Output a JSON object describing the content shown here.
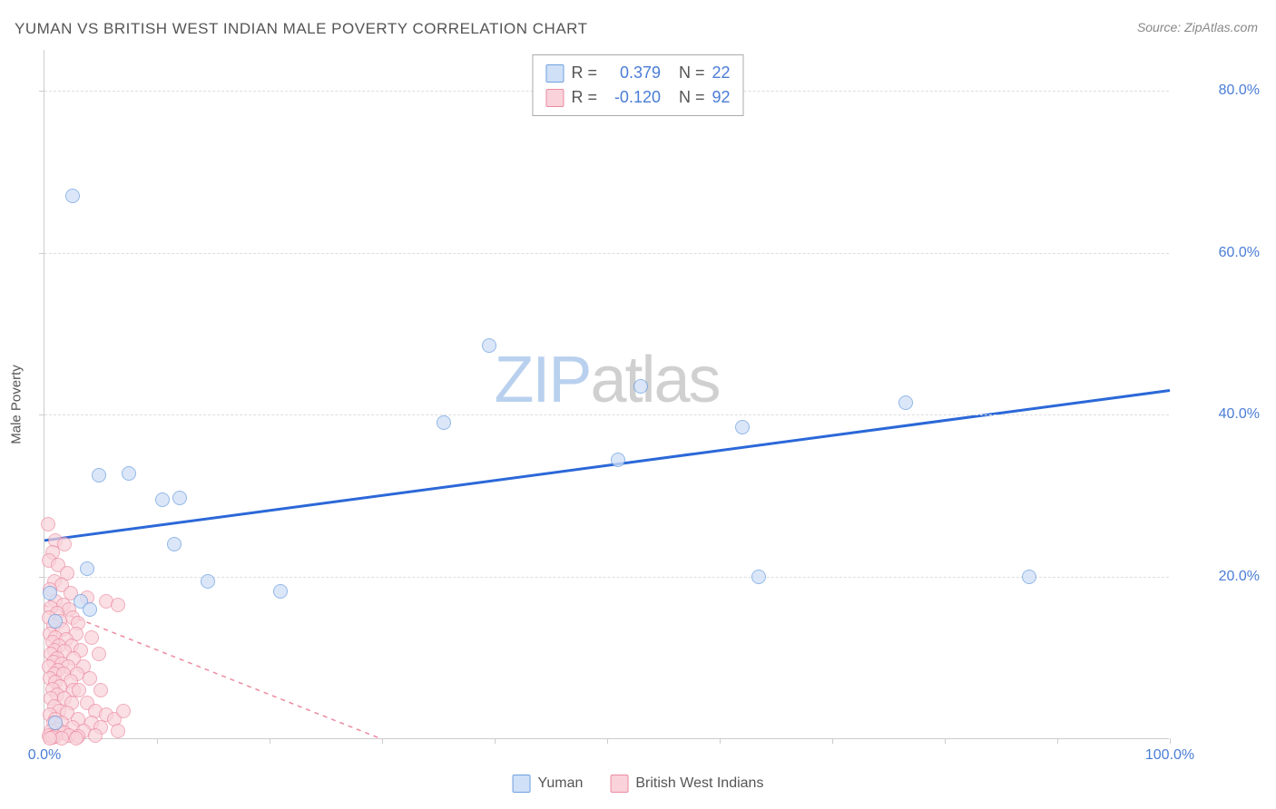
{
  "title": "YUMAN VS BRITISH WEST INDIAN MALE POVERTY CORRELATION CHART",
  "source": "Source: ZipAtlas.com",
  "y_axis_label": "Male Poverty",
  "watermark_a": "ZIP",
  "watermark_b": "atlas",
  "chart": {
    "type": "scatter",
    "xlim": [
      0,
      100
    ],
    "ylim": [
      0,
      85
    ],
    "y_ticks": [
      20,
      40,
      60,
      80
    ],
    "y_tick_labels": [
      "20.0%",
      "40.0%",
      "60.0%",
      "80.0%"
    ],
    "x_ticks": [
      0,
      10,
      20,
      30,
      40,
      50,
      60,
      70,
      80,
      90,
      100
    ],
    "x_end_labels": {
      "start": "0.0%",
      "end": "100.0%"
    },
    "background_color": "#ffffff",
    "grid_color": "#dddddd",
    "axis_color": "#cccccc",
    "tick_label_color": "#4a7dd6",
    "marker_radius": 8,
    "marker_border_width": 1.2,
    "series": [
      {
        "name": "Yuman",
        "fill": "#cfe0f7",
        "stroke": "#6ea0e0",
        "fill_opacity": 0.75,
        "points": [
          [
            2.5,
            67
          ],
          [
            4.8,
            32.5
          ],
          [
            7.5,
            32.8
          ],
          [
            10.5,
            29.5
          ],
          [
            12.0,
            29.8
          ],
          [
            11.5,
            24.0
          ],
          [
            3.8,
            21.0
          ],
          [
            14.5,
            19.5
          ],
          [
            21.0,
            18.2
          ],
          [
            0.5,
            18.0
          ],
          [
            3.2,
            17.0
          ],
          [
            4.0,
            16.0
          ],
          [
            1.0,
            14.5
          ],
          [
            39.5,
            48.5
          ],
          [
            35.5,
            39.0
          ],
          [
            53.0,
            43.5
          ],
          [
            51.0,
            34.5
          ],
          [
            62.0,
            38.5
          ],
          [
            76.5,
            41.5
          ],
          [
            63.5,
            20.0
          ],
          [
            87.5,
            20.0
          ],
          [
            1.0,
            2.0
          ]
        ],
        "trend": {
          "x1": 0,
          "y1": 24.5,
          "x2": 100,
          "y2": 43.0,
          "color": "#2b68d8",
          "width": 3,
          "dash": "none"
        }
      },
      {
        "name": "British West Indians",
        "fill": "#f9d2da",
        "stroke": "#ec8ba1",
        "fill_opacity": 0.7,
        "points": [
          [
            0.3,
            26.5
          ],
          [
            1.0,
            24.5
          ],
          [
            0.7,
            23.0
          ],
          [
            1.8,
            24.0
          ],
          [
            0.4,
            22.0
          ],
          [
            1.2,
            21.5
          ],
          [
            2.0,
            20.5
          ],
          [
            0.9,
            19.5
          ],
          [
            1.5,
            19.0
          ],
          [
            0.5,
            18.5
          ],
          [
            2.3,
            18.0
          ],
          [
            3.8,
            17.5
          ],
          [
            1.0,
            17.0
          ],
          [
            1.7,
            16.5
          ],
          [
            0.6,
            16.2
          ],
          [
            2.2,
            16.0
          ],
          [
            5.5,
            17.0
          ],
          [
            1.1,
            15.5
          ],
          [
            0.4,
            15.0
          ],
          [
            2.5,
            15.0
          ],
          [
            1.4,
            14.5
          ],
          [
            3.0,
            14.3
          ],
          [
            0.8,
            14.0
          ],
          [
            6.5,
            16.5
          ],
          [
            1.6,
            13.5
          ],
          [
            0.5,
            13.0
          ],
          [
            2.8,
            13.0
          ],
          [
            1.0,
            12.5
          ],
          [
            1.9,
            12.3
          ],
          [
            4.2,
            12.5
          ],
          [
            0.7,
            12.0
          ],
          [
            1.3,
            11.5
          ],
          [
            2.4,
            11.5
          ],
          [
            0.9,
            11.0
          ],
          [
            1.8,
            10.8
          ],
          [
            3.2,
            11.0
          ],
          [
            0.6,
            10.5
          ],
          [
            1.1,
            10.0
          ],
          [
            2.6,
            10.0
          ],
          [
            4.8,
            10.5
          ],
          [
            0.8,
            9.5
          ],
          [
            1.5,
            9.3
          ],
          [
            2.1,
            9.0
          ],
          [
            0.4,
            9.0
          ],
          [
            1.2,
            8.5
          ],
          [
            3.5,
            9.0
          ],
          [
            0.9,
            8.0
          ],
          [
            1.7,
            8.0
          ],
          [
            2.9,
            8.0
          ],
          [
            0.5,
            7.5
          ],
          [
            1.0,
            7.0
          ],
          [
            2.3,
            7.2
          ],
          [
            4.0,
            7.5
          ],
          [
            1.4,
            6.5
          ],
          [
            0.7,
            6.2
          ],
          [
            2.6,
            6.0
          ],
          [
            1.1,
            5.5
          ],
          [
            3.1,
            6.0
          ],
          [
            0.6,
            5.0
          ],
          [
            1.8,
            5.0
          ],
          [
            2.4,
            4.5
          ],
          [
            0.9,
            4.0
          ],
          [
            5.0,
            6.0
          ],
          [
            1.3,
            3.5
          ],
          [
            3.8,
            4.5
          ],
          [
            0.5,
            3.0
          ],
          [
            2.0,
            3.2
          ],
          [
            1.0,
            2.5
          ],
          [
            4.5,
            3.5
          ],
          [
            0.8,
            2.0
          ],
          [
            1.5,
            2.0
          ],
          [
            3.0,
            2.5
          ],
          [
            5.5,
            3.0
          ],
          [
            2.5,
            1.5
          ],
          [
            1.2,
            1.2
          ],
          [
            0.6,
            1.0
          ],
          [
            4.2,
            2.0
          ],
          [
            1.8,
            0.8
          ],
          [
            3.5,
            1.0
          ],
          [
            6.2,
            2.5
          ],
          [
            0.4,
            0.5
          ],
          [
            2.2,
            0.5
          ],
          [
            1.0,
            0.3
          ],
          [
            5.0,
            1.5
          ],
          [
            7.0,
            3.5
          ],
          [
            0.7,
            0.2
          ],
          [
            3.0,
            0.3
          ],
          [
            1.5,
            0.1
          ],
          [
            4.5,
            0.5
          ],
          [
            6.5,
            1.0
          ],
          [
            2.8,
            0.1
          ],
          [
            0.5,
            0.1
          ]
        ],
        "trend": {
          "x1": 0,
          "y1": 16.5,
          "x2": 30,
          "y2": 0,
          "color": "#ec8ba1",
          "width": 1.5,
          "dash": "5,5"
        }
      }
    ]
  },
  "legend_top": [
    {
      "swatch_fill": "#cfe0f7",
      "swatch_stroke": "#6ea0e0",
      "r_label": "R =",
      "r_value": "0.379",
      "n_label": "N =",
      "n_value": "22",
      "value_color": "#4a7dd6"
    },
    {
      "swatch_fill": "#f9d2da",
      "swatch_stroke": "#ec8ba1",
      "r_label": "R =",
      "r_value": "-0.120",
      "n_label": "N =",
      "n_value": "92",
      "value_color": "#4a7dd6"
    }
  ],
  "legend_bottom": [
    {
      "swatch_fill": "#cfe0f7",
      "swatch_stroke": "#6ea0e0",
      "label": "Yuman"
    },
    {
      "swatch_fill": "#f9d2da",
      "swatch_stroke": "#ec8ba1",
      "label": "British West Indians"
    }
  ]
}
